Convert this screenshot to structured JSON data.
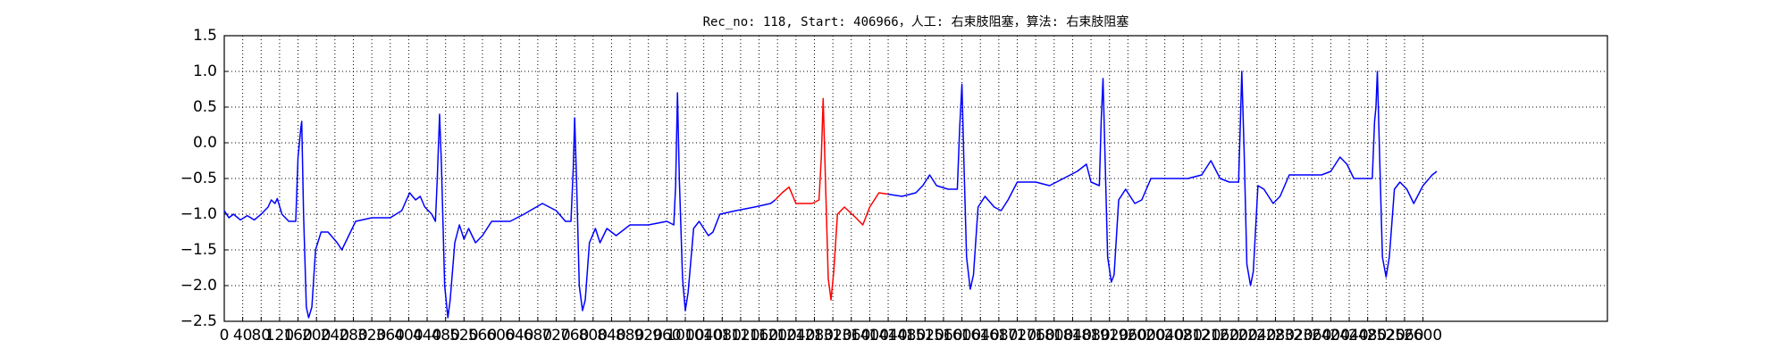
{
  "chart_data": {
    "type": "line",
    "title": "Rec_no: 118, Start: 406966，人工: 右束肢阻塞，算法: 右束肢阻塞",
    "xlim": [
      0,
      3000
    ],
    "xticks": [
      0,
      40,
      80,
      120,
      160,
      200,
      240,
      280,
      320,
      360,
      400,
      440,
      480,
      520,
      560,
      600,
      640,
      680,
      720,
      760,
      800,
      840,
      880,
      920,
      960,
      1000,
      1040,
      1080,
      1120,
      1160,
      1200,
      1240,
      1280,
      1320,
      1360,
      1400,
      1440,
      1480,
      1520,
      1560,
      1600,
      1640,
      1680,
      1720,
      1760,
      1800,
      1840,
      1880,
      1920,
      1960,
      2000,
      2040,
      2080,
      2120,
      2160,
      2200,
      2240,
      2280,
      2320,
      2360,
      2400,
      2440,
      2480,
      2520,
      2560,
      2600
    ],
    "ylim": [
      -2.5,
      1.5
    ],
    "yticks": [
      {
        "value": -2.5,
        "label": "−2.5"
      },
      {
        "value": -2.0,
        "label": "−2.0"
      },
      {
        "value": -1.5,
        "label": "−1.5"
      },
      {
        "value": -1.0,
        "label": "−1.0"
      },
      {
        "value": -0.5,
        "label": "−0.5"
      },
      {
        "value": 0.0,
        "label": "0.0"
      },
      0.5,
      {
        "value": 1.0,
        "label": "1.0"
      },
      1.5
    ],
    "grid": true,
    "series": [
      {
        "color": "#0000ff",
        "x": [
          0,
          10,
          20,
          35,
          50,
          65,
          80,
          95,
          102,
          110,
          115,
          125,
          140,
          155,
          160,
          166,
          168,
          172,
          178,
          183,
          190,
          198,
          210,
          225,
          245,
          255,
          270,
          285,
          320,
          360,
          385,
          402,
          415,
          425,
          435,
          450,
          458,
          462,
          467,
          471,
          478,
          485,
          490,
          500,
          510,
          520,
          530,
          545,
          560,
          580,
          620,
          650,
          690,
          720,
          740,
          752,
          757,
          760,
          764,
          770,
          777,
          783,
          792,
          805,
          815,
          830,
          850,
          880,
          920,
          960,
          975,
          979,
          983,
          987,
          994,
          1000,
          1006,
          1018,
          1030,
          1050,
          1060,
          1075,
          1110,
          1150,
          1185,
          1195,
          1300,
          1440,
          1470,
          1500,
          1515,
          1530,
          1545,
          1570,
          1590,
          1595,
          1600,
          1604,
          1610,
          1618,
          1625,
          1635,
          1650,
          1670,
          1685,
          1700,
          1720,
          1760,
          1790,
          1820,
          1850,
          1870,
          1880,
          1898,
          1902,
          1906,
          1910,
          1916,
          1924,
          1930,
          1940,
          1955,
          1975,
          1990,
          2010,
          2050,
          2090,
          2120,
          2140,
          2160,
          2180,
          2200,
          2204,
          2207,
          2212,
          2218,
          2226,
          2232,
          2242,
          2255,
          2275,
          2290,
          2310,
          2350,
          2380,
          2400,
          2420,
          2435,
          2450,
          2490,
          2495,
          2498,
          2501,
          2506,
          2512,
          2520,
          2527,
          2538,
          2550,
          2565,
          2580,
          2600,
          2620,
          2630
        ],
        "values": [
          -0.95,
          -1.05,
          -1.0,
          -1.08,
          -1.02,
          -1.08,
          -1.0,
          -0.9,
          -0.8,
          -0.85,
          -0.78,
          -1.0,
          -1.1,
          -1.1,
          -0.2,
          0.2,
          0.3,
          -1.0,
          -2.3,
          -2.45,
          -2.3,
          -1.5,
          -1.25,
          -1.25,
          -1.4,
          -1.5,
          -1.3,
          -1.1,
          -1.05,
          -1.05,
          -0.95,
          -0.7,
          -0.8,
          -0.75,
          -0.9,
          -1.0,
          -1.1,
          -0.5,
          0.4,
          -0.3,
          -2.0,
          -2.45,
          -2.2,
          -1.4,
          -1.15,
          -1.35,
          -1.2,
          -1.4,
          -1.3,
          -1.1,
          -1.1,
          -1.0,
          -0.85,
          -0.95,
          -1.1,
          -1.1,
          -0.35,
          0.35,
          -0.5,
          -2.0,
          -2.35,
          -2.2,
          -1.4,
          -1.2,
          -1.4,
          -1.2,
          -1.3,
          -1.15,
          -1.15,
          -1.1,
          -1.15,
          -0.6,
          0.7,
          -0.5,
          -1.9,
          -2.35,
          -2.1,
          -1.2,
          -1.1,
          -1.3,
          -1.25,
          -1.0,
          -0.95,
          -0.9,
          -0.85,
          -0.8,
          null,
          -0.72,
          -0.75,
          -0.7,
          -0.6,
          -0.45,
          -0.6,
          -0.65,
          -0.65,
          0.2,
          0.82,
          -0.2,
          -1.6,
          -2.05,
          -1.85,
          -0.9,
          -0.75,
          -0.9,
          -0.95,
          -0.8,
          -0.55,
          -0.55,
          -0.6,
          -0.5,
          -0.4,
          -0.3,
          -0.55,
          -0.6,
          0.3,
          0.9,
          -0.1,
          -1.6,
          -1.95,
          -1.85,
          -0.8,
          -0.65,
          -0.85,
          -0.8,
          -0.5,
          -0.5,
          -0.5,
          -0.45,
          -0.25,
          -0.5,
          -0.55,
          -0.55,
          0.3,
          1.0,
          -0.1,
          -1.7,
          -2.0,
          -1.8,
          -0.6,
          -0.65,
          -0.85,
          -0.75,
          -0.45,
          -0.45,
          -0.45,
          -0.4,
          -0.2,
          -0.3,
          -0.5,
          -0.5,
          0.3,
          0.5,
          1.0,
          -0.2,
          -1.6,
          -1.88,
          -1.6,
          -0.65,
          -0.55,
          -0.65,
          -0.85,
          -0.6,
          -0.45,
          -0.4
        ]
      },
      {
        "color": "#ff0000",
        "x": [
          1195,
          1210,
          1225,
          1240,
          1275,
          1290,
          1295,
          1299,
          1303,
          1310,
          1316,
          1322,
          1330,
          1345,
          1370,
          1385,
          1400,
          1420,
          1440
        ],
        "values": [
          -0.8,
          -0.7,
          -0.62,
          -0.85,
          -0.85,
          -0.8,
          -0.2,
          0.62,
          -0.3,
          -1.9,
          -2.2,
          -1.8,
          -1.0,
          -0.9,
          -1.05,
          -1.15,
          -0.9,
          -0.7,
          -0.72
        ]
      }
    ]
  }
}
